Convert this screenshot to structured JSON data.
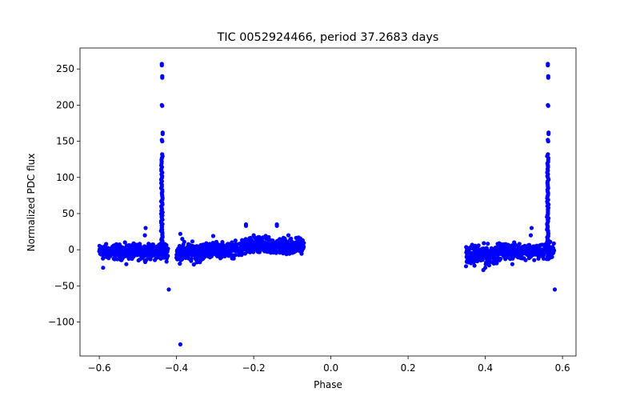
{
  "chart_data": {
    "type": "scatter",
    "title": "TIC 0052924466, period 37.2683 days",
    "xlabel": "Phase",
    "ylabel": "Normalized PDC flux",
    "xlim": [
      -0.65,
      0.635
    ],
    "ylim": [
      -147,
      279
    ],
    "grid": false,
    "x_ticks": [
      {
        "value": -0.6,
        "label": "−0.6"
      },
      {
        "value": -0.4,
        "label": "−0.4"
      },
      {
        "value": -0.2,
        "label": "−0.2"
      },
      {
        "value": 0.0,
        "label": "0.0"
      },
      {
        "value": 0.2,
        "label": "0.2"
      },
      {
        "value": 0.4,
        "label": "0.4"
      },
      {
        "value": 0.6,
        "label": "0.6"
      }
    ],
    "y_ticks": [
      {
        "value": -100,
        "label": "−100"
      },
      {
        "value": -50,
        "label": "−50"
      },
      {
        "value": 0,
        "label": "0"
      },
      {
        "value": 50,
        "label": "50"
      },
      {
        "value": 100,
        "label": "100"
      },
      {
        "value": 150,
        "label": "150"
      },
      {
        "value": 200,
        "label": "200"
      },
      {
        "value": 250,
        "label": "250"
      }
    ],
    "series": [
      {
        "name": "flux",
        "color": "#0000ff",
        "segments": [
          {
            "x_start": -0.6,
            "x_end": -0.445,
            "y_center": -3,
            "spread": 7
          },
          {
            "x_start": -0.445,
            "x_end": -0.422,
            "y_center": -2,
            "spread": 8
          },
          {
            "x_start": -0.4,
            "x_end": -0.33,
            "y_center": -4,
            "spread": 9
          },
          {
            "x_start": -0.33,
            "x_end": -0.23,
            "y_center": 0,
            "spread": 7
          },
          {
            "x_start": -0.23,
            "x_end": -0.07,
            "y_center": 5,
            "spread": 8
          },
          {
            "x_start": 0.35,
            "x_end": 0.43,
            "y_center": -7,
            "spread": 9
          },
          {
            "x_start": 0.43,
            "x_end": 0.555,
            "y_center": -2,
            "spread": 7
          },
          {
            "x_start": 0.555,
            "x_end": 0.578,
            "y_center": -2,
            "spread": 8
          }
        ],
        "flares": [
          {
            "x": -0.438,
            "y_min": -5,
            "y_max": 132
          },
          {
            "x": 0.562,
            "y_min": -5,
            "y_max": 132
          }
        ],
        "points": [
          [
            -0.438,
            257
          ],
          [
            -0.438,
            255
          ],
          [
            -0.437,
            240
          ],
          [
            -0.437,
            238
          ],
          [
            -0.438,
            200
          ],
          [
            -0.437,
            199
          ],
          [
            -0.436,
            162
          ],
          [
            -0.436,
            160
          ],
          [
            -0.438,
            152
          ],
          [
            -0.437,
            150
          ],
          [
            -0.42,
            -55
          ],
          [
            -0.39,
            -131
          ],
          [
            -0.39,
            22
          ],
          [
            -0.385,
            15
          ],
          [
            -0.48,
            30
          ],
          [
            -0.482,
            20
          ],
          [
            -0.53,
            -20
          ],
          [
            -0.59,
            -25
          ],
          [
            -0.305,
            19
          ],
          [
            -0.22,
            35
          ],
          [
            -0.22,
            33
          ],
          [
            -0.14,
            35
          ],
          [
            -0.14,
            33
          ],
          [
            -0.2,
            20
          ],
          [
            -0.11,
            20
          ],
          [
            0.562,
            257
          ],
          [
            0.562,
            255
          ],
          [
            0.563,
            240
          ],
          [
            0.563,
            238
          ],
          [
            0.562,
            200
          ],
          [
            0.563,
            199
          ],
          [
            0.564,
            162
          ],
          [
            0.564,
            160
          ],
          [
            0.562,
            152
          ],
          [
            0.563,
            150
          ],
          [
            0.58,
            -55
          ],
          [
            0.52,
            30
          ],
          [
            0.518,
            20
          ],
          [
            0.47,
            -20
          ],
          [
            0.4,
            -25
          ],
          [
            0.395,
            -28
          ]
        ]
      }
    ]
  }
}
